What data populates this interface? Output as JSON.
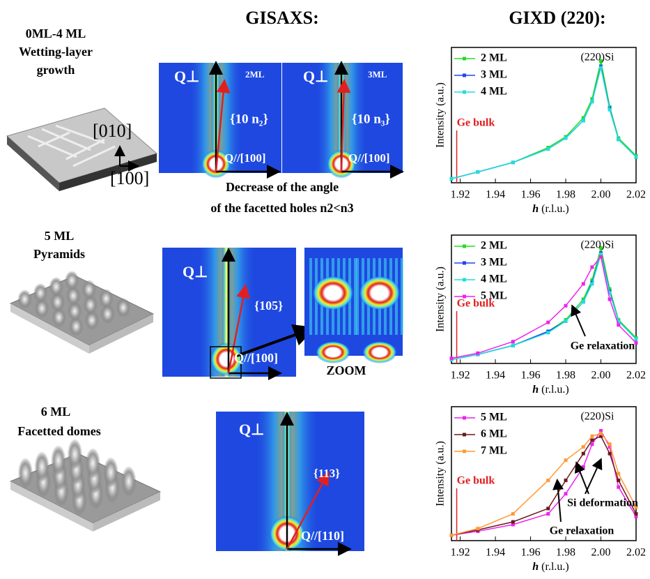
{
  "headers": {
    "gisaxs": "GISAXS:",
    "gixd": "GIXD (220):"
  },
  "stages": [
    {
      "lines": [
        "0ML-4 ML",
        "Wetting-layer",
        "growth"
      ]
    },
    {
      "lines": [
        "5 ML",
        "Pyramids"
      ]
    },
    {
      "lines": [
        "6 ML",
        "Facetted domes"
      ]
    }
  ],
  "afm_axes": [
    "[010]",
    "[100]"
  ],
  "gisaxs": {
    "row1": {
      "q_perp": "Q⊥",
      "panel_a": "2ML",
      "panel_b": "3ML",
      "facet_a": "{10 n₂}",
      "facet_b": "{10 n₃}",
      "q_par": "Q//[100]",
      "caption": [
        "Decrease of the angle",
        "of the facetted holes n2<n3"
      ]
    },
    "row2": {
      "q_perp": "Q⊥",
      "facet": "{105}",
      "q_par": "Q//[100]",
      "zoom": "ZOOM"
    },
    "row3": {
      "q_perp": "Q⊥",
      "facet": "{113}",
      "q_par": "Q//[110]"
    }
  },
  "chart_data": [
    {
      "type": "line",
      "ylabel": "Intensity (a.u.)",
      "xlabel_symbol": "h",
      "xlabel_unit": "(r.l.u.)",
      "x": [
        1.915,
        1.93,
        1.95,
        1.97,
        1.98,
        1.99,
        1.995,
        2.0,
        2.005,
        2.01,
        2.02
      ],
      "xlim": [
        1.915,
        2.02
      ],
      "xticks": [
        1.92,
        1.94,
        1.96,
        1.98,
        {
          "value": 2,
          "label": "2.00"
        },
        2.02
      ],
      "ylim": [
        0,
        1
      ],
      "peak_label": "(220)Si",
      "ge_bulk": {
        "label": "Ge bulk",
        "x": 1.918
      },
      "notes": [],
      "series": [
        {
          "name": "2 ML",
          "color": "#22dd22",
          "values": [
            0.03,
            0.08,
            0.15,
            0.26,
            0.34,
            0.48,
            0.62,
            0.9,
            0.56,
            0.33,
            0.2
          ]
        },
        {
          "name": "3 ML",
          "color": "#2244ee",
          "values": [
            0.03,
            0.08,
            0.15,
            0.25,
            0.33,
            0.46,
            0.6,
            0.86,
            0.55,
            0.32,
            0.19
          ]
        },
        {
          "name": "4 ML",
          "color": "#22dddd",
          "values": [
            0.03,
            0.08,
            0.15,
            0.25,
            0.33,
            0.46,
            0.6,
            0.85,
            0.54,
            0.32,
            0.19
          ]
        }
      ]
    },
    {
      "type": "line",
      "ylabel": "Intensity (a.u.)",
      "xlabel_symbol": "h",
      "xlabel_unit": "(r.l.u.)",
      "x": [
        1.915,
        1.93,
        1.95,
        1.97,
        1.98,
        1.99,
        1.995,
        2.0,
        2.005,
        2.01,
        2.02
      ],
      "xlim": [
        1.915,
        2.02
      ],
      "xticks": [
        1.92,
        1.94,
        1.96,
        1.98,
        {
          "value": 2,
          "label": "2.00"
        },
        2.02
      ],
      "ylim": [
        0,
        1
      ],
      "peak_label": "(220)Si",
      "ge_bulk": {
        "label": "Ge bulk",
        "x": 1.918
      },
      "notes": [
        "Ge relaxation"
      ],
      "series": [
        {
          "name": "2 ML",
          "color": "#22dd22",
          "values": [
            0.03,
            0.07,
            0.14,
            0.25,
            0.34,
            0.5,
            0.65,
            0.9,
            0.58,
            0.34,
            0.2
          ]
        },
        {
          "name": "3 ML",
          "color": "#2244ee",
          "values": [
            0.03,
            0.07,
            0.14,
            0.25,
            0.33,
            0.48,
            0.63,
            0.86,
            0.56,
            0.33,
            0.19
          ]
        },
        {
          "name": "4 ML",
          "color": "#22dddd",
          "values": [
            0.03,
            0.07,
            0.14,
            0.24,
            0.33,
            0.48,
            0.62,
            0.85,
            0.55,
            0.33,
            0.19
          ]
        },
        {
          "name": "5 ML",
          "color": "#ee22ee",
          "values": [
            0.04,
            0.08,
            0.17,
            0.32,
            0.45,
            0.62,
            0.75,
            0.83,
            0.5,
            0.3,
            0.16
          ]
        }
      ]
    },
    {
      "type": "line",
      "ylabel": "Intensity (a.u.)",
      "xlabel_symbol": "h",
      "xlabel_unit": "(r.l.u.)",
      "x": [
        1.915,
        1.93,
        1.95,
        1.97,
        1.98,
        1.99,
        1.995,
        2.0,
        2.005,
        2.01,
        2.02
      ],
      "xlim": [
        1.915,
        2.02
      ],
      "xticks": [
        1.92,
        1.94,
        1.96,
        1.98,
        {
          "value": 2,
          "label": "2.00"
        },
        2.02
      ],
      "ylim": [
        0,
        1
      ],
      "peak_label": "(220)Si",
      "ge_bulk": {
        "label": "Ge bulk",
        "x": 1.918
      },
      "notes": [
        "Si deformation",
        "Ge relaxation"
      ],
      "series": [
        {
          "name": "5 ML",
          "color": "#ee22ee",
          "values": [
            0.04,
            0.07,
            0.12,
            0.2,
            0.35,
            0.55,
            0.72,
            0.82,
            0.7,
            0.4,
            0.18
          ]
        },
        {
          "name": "6 ML",
          "color": "#6b1a1a",
          "values": [
            0.04,
            0.08,
            0.14,
            0.24,
            0.45,
            0.65,
            0.75,
            0.78,
            0.65,
            0.45,
            0.2
          ]
        },
        {
          "name": "7 ML",
          "color": "#ff9933",
          "values": [
            0.04,
            0.09,
            0.2,
            0.45,
            0.6,
            0.7,
            0.78,
            0.8,
            0.72,
            0.5,
            0.25
          ]
        }
      ]
    }
  ]
}
